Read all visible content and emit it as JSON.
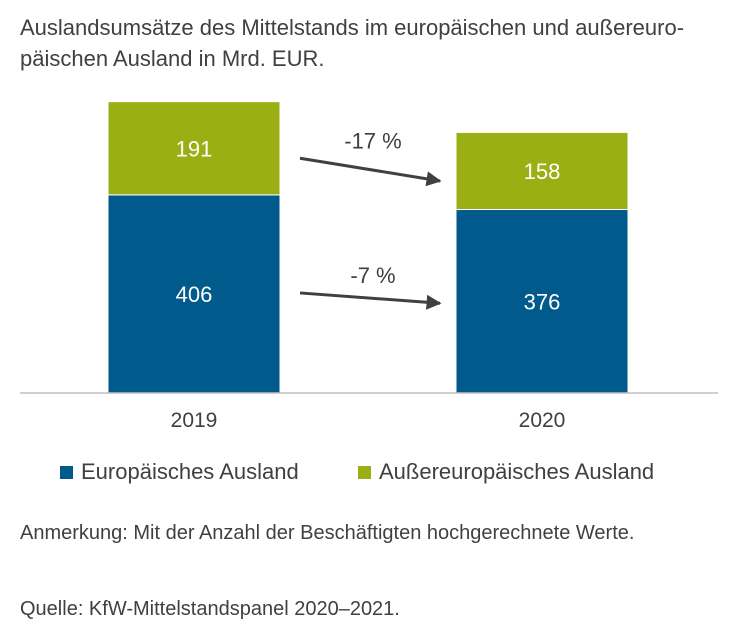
{
  "title": "Auslandsumsätze des Mittelstands im europäischen und außereuro-päischen Ausland in Mrd. EUR.",
  "note": "Anmerkung: Mit der Anzahl der Beschäftigten hochgerechnete Werte.",
  "source": "Quelle: KfW-Mittelstandspanel 2020–2021.",
  "colors": {
    "europe": "#005a8c",
    "outside": "#9aaf13",
    "arrow": "#404040",
    "axis": "#bfbfbf"
  },
  "chart_data": {
    "type": "bar",
    "stacked": true,
    "categories": [
      "2019",
      "2020"
    ],
    "series": [
      {
        "name": "Europäisches Ausland",
        "values": [
          406,
          376
        ]
      },
      {
        "name": "Außereuropäisches Ausland",
        "values": [
          191,
          158
        ]
      }
    ],
    "ylim": [
      0,
      600
    ],
    "grid": false,
    "legend": "bottom",
    "annotations": [
      {
        "text": "-17 %",
        "series": "Außereuropäisches Ausland"
      },
      {
        "text": "-7 %",
        "series": "Europäisches Ausland"
      }
    ]
  }
}
